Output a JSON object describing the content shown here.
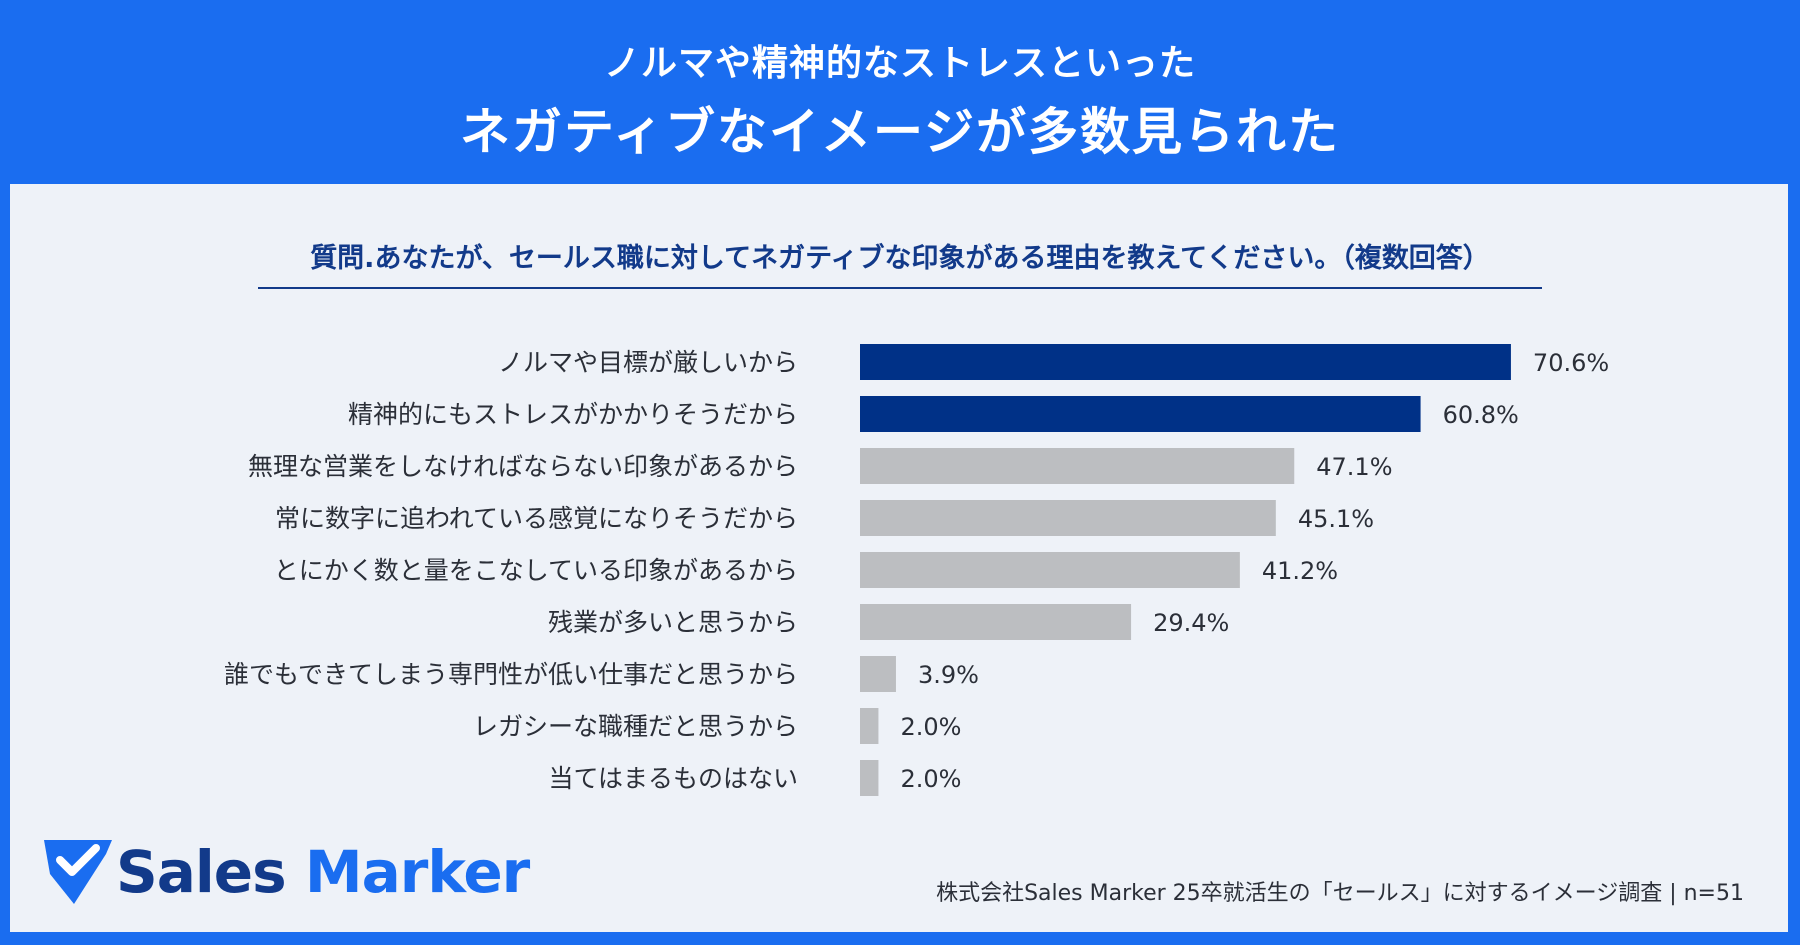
{
  "header": {
    "line1": "ノルマや精神的なストレスといった",
    "line2": "ネガティブなイメージが多数見られた"
  },
  "question": "質問.あなたが、セールス職に対してネガティブな印象がある理由を教えてください。（複数回答）",
  "colors": {
    "background_frame": "#1a6df0",
    "panel": "#eef2f8",
    "highlight_bar": "#003187",
    "default_bar": "#bcbec1",
    "question_text": "#123a8a"
  },
  "chart_data": {
    "type": "bar",
    "orientation": "horizontal",
    "categories": [
      "ノルマや目標が厳しいから",
      "精神的にもストレスがかかりそうだから",
      "無理な営業をしなければならない印象があるから",
      "常に数字に追われている感覚になりそうだから",
      "とにかく数と量をこなしている印象があるから",
      "残業が多いと思うから",
      "誰でもできてしまう専門性が低い仕事だと思うから",
      "レガシーな職種だと思うから",
      "当てはまるものはない"
    ],
    "values": [
      70.6,
      60.8,
      47.1,
      45.1,
      41.2,
      29.4,
      3.9,
      2.0,
      2.0
    ],
    "value_labels": [
      "70.6%",
      "60.8%",
      "47.1%",
      "45.1%",
      "41.2%",
      "29.4%",
      "3.9%",
      "2.0%",
      "2.0%"
    ],
    "highlighted": [
      true,
      true,
      false,
      false,
      false,
      false,
      false,
      false,
      false
    ],
    "xlim": [
      0,
      100
    ],
    "title": "",
    "xlabel": "",
    "ylabel": "",
    "grid": false
  },
  "logo": {
    "word1": "Sales",
    "word2": "Marker",
    "icon": "location-pin-check-icon"
  },
  "source": "株式会社Sales Marker 25卒就活生の「セールス」に対するイメージ調査 | n=51"
}
